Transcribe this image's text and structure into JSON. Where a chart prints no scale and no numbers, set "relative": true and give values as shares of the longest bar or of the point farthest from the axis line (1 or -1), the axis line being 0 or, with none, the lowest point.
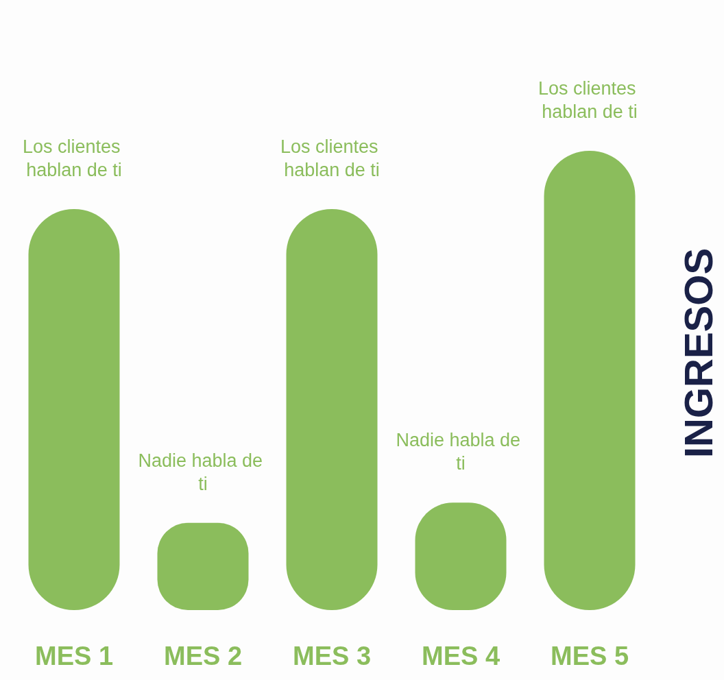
{
  "chart_data": {
    "type": "bar",
    "relative": true,
    "categories": [
      "MES 1",
      "MES 2",
      "MES 3",
      "MES 4",
      "MES 5"
    ],
    "values": [
      0.873,
      0.19,
      0.873,
      0.234,
      1
    ],
    "color": "#8bbd5c",
    "ylabel": "INGRESOS",
    "annotations": [
      "Los clientes hablan de ti",
      "Nadie habla de ti",
      "Los clientes hablan de ti",
      "Nadie habla de ti",
      "Los clientes hablan de ti"
    ],
    "grid": false
  }
}
